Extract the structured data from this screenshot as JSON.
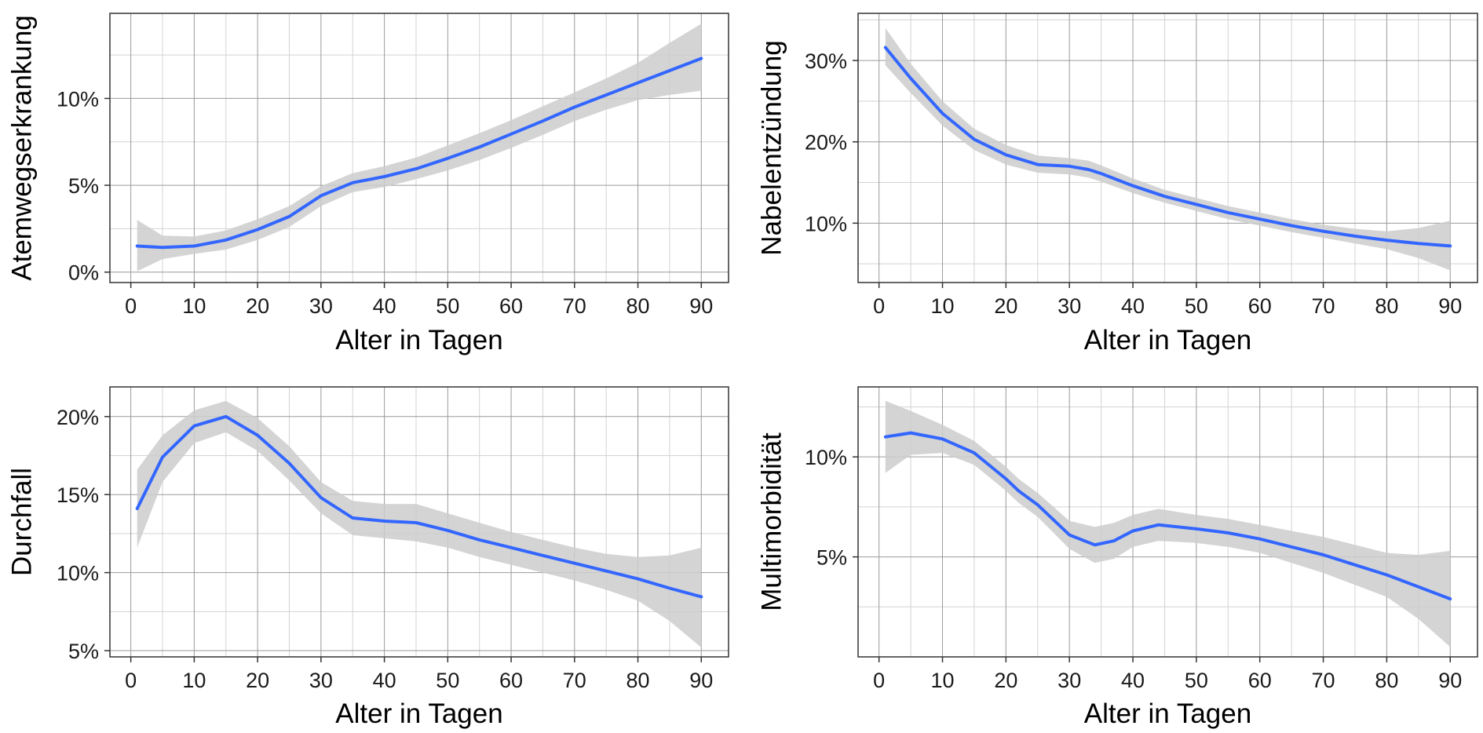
{
  "colors": {
    "line": "#3366ff",
    "band": "#cccccc",
    "grid_major": "#9a9a9a",
    "grid_minor": "#d3d3d3",
    "frame": "#333333",
    "background": "#ffffff"
  },
  "chart_data": [
    {
      "type": "line",
      "panel": "top-left",
      "xlabel": "Alter in Tagen",
      "ylabel": "Atemwegserkrankung",
      "x_ticks": [
        0,
        10,
        20,
        30,
        40,
        50,
        60,
        70,
        80,
        90
      ],
      "y_ticks": [
        0,
        5,
        10
      ],
      "y_tick_labels": [
        "0%",
        "5%",
        "10%"
      ],
      "xlim": [
        -3.3,
        94.3
      ],
      "ylim": [
        -0.6,
        14.9
      ],
      "grid": true,
      "series": [
        {
          "x": [
            1,
            5,
            10,
            15,
            20,
            25,
            30,
            35,
            40,
            45,
            50,
            55,
            60,
            65,
            70,
            75,
            80,
            85,
            90
          ],
          "y": [
            1.5,
            1.42,
            1.5,
            1.85,
            2.45,
            3.2,
            4.4,
            5.15,
            5.5,
            5.95,
            6.55,
            7.2,
            7.95,
            8.7,
            9.5,
            10.2,
            10.9,
            11.6,
            12.3
          ],
          "upper": [
            3.0,
            2.1,
            2.05,
            2.4,
            3.05,
            3.8,
            4.95,
            5.7,
            6.1,
            6.6,
            7.3,
            8.0,
            8.75,
            9.55,
            10.35,
            11.15,
            12.05,
            13.2,
            14.3
          ],
          "lower": [
            0.05,
            0.75,
            1.05,
            1.3,
            1.85,
            2.6,
            3.8,
            4.6,
            4.9,
            5.35,
            5.85,
            6.45,
            7.15,
            7.9,
            8.7,
            9.35,
            9.9,
            10.2,
            10.45
          ]
        }
      ]
    },
    {
      "type": "line",
      "panel": "top-right",
      "xlabel": "Alter in Tagen",
      "ylabel": "Nabelentzündung",
      "x_ticks": [
        0,
        10,
        20,
        30,
        40,
        50,
        60,
        70,
        80,
        90
      ],
      "y_ticks": [
        10,
        20,
        30
      ],
      "y_tick_labels": [
        "10%",
        "20%",
        "30%"
      ],
      "xlim": [
        -3.3,
        94.3
      ],
      "ylim": [
        2.7,
        35.8
      ],
      "grid": true,
      "series": [
        {
          "x": [
            1,
            5,
            10,
            15,
            20,
            25,
            30,
            33,
            35,
            40,
            45,
            50,
            55,
            60,
            65,
            70,
            75,
            80,
            85,
            90
          ],
          "y": [
            31.6,
            27.8,
            23.5,
            20.3,
            18.4,
            17.2,
            17.0,
            16.6,
            16.1,
            14.6,
            13.3,
            12.3,
            11.3,
            10.5,
            9.7,
            9.0,
            8.4,
            7.9,
            7.5,
            7.2
          ],
          "upper": [
            34.0,
            29.6,
            25.0,
            21.6,
            19.6,
            18.3,
            18.0,
            17.7,
            17.1,
            15.5,
            14.1,
            13.1,
            12.1,
            11.3,
            10.5,
            9.8,
            9.3,
            9.0,
            9.4,
            10.3
          ],
          "lower": [
            29.4,
            26.0,
            22.0,
            19.0,
            17.2,
            16.2,
            16.0,
            15.6,
            15.1,
            13.7,
            12.5,
            11.5,
            10.5,
            9.7,
            8.9,
            8.2,
            7.5,
            6.8,
            5.7,
            4.2
          ]
        }
      ]
    },
    {
      "type": "line",
      "panel": "bottom-left",
      "xlabel": "Alter in Tagen",
      "ylabel": "Durchfall",
      "x_ticks": [
        0,
        10,
        20,
        30,
        40,
        50,
        60,
        70,
        80,
        90
      ],
      "y_ticks": [
        5,
        10,
        15,
        20
      ],
      "y_tick_labels": [
        "5%",
        "10%",
        "15%",
        "20%"
      ],
      "xlim": [
        -3.3,
        94.3
      ],
      "ylim": [
        4.6,
        21.9
      ],
      "grid": true,
      "series": [
        {
          "x": [
            1,
            5,
            10,
            15,
            20,
            25,
            30,
            35,
            40,
            45,
            50,
            55,
            60,
            65,
            70,
            75,
            80,
            85,
            90
          ],
          "y": [
            14.1,
            17.4,
            19.4,
            20.0,
            18.8,
            17.0,
            14.8,
            13.5,
            13.3,
            13.2,
            12.7,
            12.1,
            11.6,
            11.1,
            10.6,
            10.1,
            9.6,
            9.0,
            8.45
          ],
          "upper": [
            16.6,
            18.8,
            20.4,
            21.0,
            19.9,
            18.1,
            15.8,
            14.6,
            14.4,
            14.4,
            13.8,
            13.2,
            12.6,
            12.1,
            11.6,
            11.2,
            11.0,
            11.1,
            11.6
          ],
          "lower": [
            11.6,
            15.8,
            18.3,
            19.0,
            17.8,
            15.9,
            13.8,
            12.4,
            12.2,
            12.0,
            11.6,
            11.0,
            10.5,
            10.0,
            9.5,
            8.9,
            8.2,
            6.9,
            5.2
          ]
        }
      ]
    },
    {
      "type": "line",
      "panel": "bottom-right",
      "xlabel": "Alter in Tagen",
      "ylabel": "Multimorbidität",
      "x_ticks": [
        0,
        10,
        20,
        30,
        40,
        50,
        60,
        70,
        80,
        90
      ],
      "y_ticks": [
        5,
        10
      ],
      "y_tick_labels": [
        "5%",
        "10%"
      ],
      "xlim": [
        -3.3,
        94.3
      ],
      "ylim": [
        0.0,
        13.5
      ],
      "grid": true,
      "series": [
        {
          "x": [
            1,
            5,
            10,
            15,
            20,
            22,
            25,
            30,
            34,
            37,
            40,
            44,
            50,
            55,
            60,
            65,
            70,
            75,
            80,
            85,
            90
          ],
          "y": [
            11.0,
            11.2,
            10.9,
            10.2,
            8.9,
            8.3,
            7.6,
            6.1,
            5.6,
            5.8,
            6.3,
            6.6,
            6.4,
            6.2,
            5.9,
            5.5,
            5.1,
            4.6,
            4.1,
            3.5,
            2.9
          ],
          "upper": [
            12.8,
            12.3,
            11.6,
            10.8,
            9.5,
            8.9,
            8.2,
            6.8,
            6.5,
            6.7,
            7.1,
            7.4,
            7.1,
            6.9,
            6.6,
            6.3,
            6.0,
            5.6,
            5.2,
            5.1,
            5.3
          ],
          "lower": [
            9.2,
            10.1,
            10.2,
            9.6,
            8.3,
            7.7,
            7.0,
            5.4,
            4.7,
            4.9,
            5.5,
            5.8,
            5.7,
            5.5,
            5.2,
            4.7,
            4.2,
            3.6,
            3.0,
            1.9,
            0.5
          ]
        }
      ]
    }
  ]
}
